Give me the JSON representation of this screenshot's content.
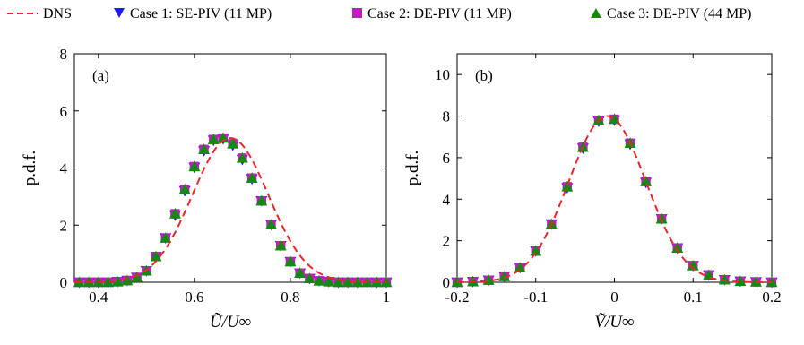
{
  "legend": {
    "dns": "DNS",
    "case1": "Case 1: SE-PIV (11 MP)",
    "case2": "Case 2: DE-PIV (11 MP)",
    "case3": "Case 3: DE-PIV (44 MP)"
  },
  "colors": {
    "dns": "#e8262c",
    "case1": "#1a1aee",
    "case2": "#c21cc2",
    "case3": "#128a12"
  },
  "chart_data": [
    {
      "type": "line",
      "panel_label": "(a)",
      "xlabel": "Ũ/U∞",
      "ylabel": "p.d.f.",
      "xlim": [
        0.35,
        1.0
      ],
      "ylim": [
        0,
        8
      ],
      "xticks": [
        0.4,
        0.6,
        0.8,
        1.0
      ],
      "xtick_labels": [
        "0.4",
        "0.6",
        "0.8",
        "1"
      ],
      "yticks": [
        0,
        2,
        4,
        6,
        8
      ],
      "ytick_labels": [
        "0",
        "2",
        "4",
        "6",
        "8"
      ],
      "dns_curve": {
        "kind": "gaussian",
        "peak": 5.05,
        "mean": 0.675,
        "sigma": 0.079
      },
      "x": [
        0.36,
        0.38,
        0.4,
        0.42,
        0.44,
        0.46,
        0.48,
        0.5,
        0.52,
        0.54,
        0.56,
        0.58,
        0.6,
        0.62,
        0.64,
        0.66,
        0.68,
        0.7,
        0.72,
        0.74,
        0.76,
        0.78,
        0.8,
        0.82,
        0.84,
        0.86,
        0.88,
        0.9,
        0.92,
        0.94,
        0.96,
        0.98,
        1.0
      ],
      "series": [
        {
          "name": "Case 1: SE-PIV (11 MP)",
          "marker": "triangle-down",
          "values": [
            0.0,
            0.0,
            0.0,
            0.0,
            0.02,
            0.06,
            0.17,
            0.4,
            0.9,
            1.55,
            2.35,
            3.2,
            4.02,
            4.6,
            4.97,
            5.02,
            4.8,
            4.3,
            3.62,
            2.85,
            2.02,
            1.28,
            0.72,
            0.32,
            0.13,
            0.05,
            0.02,
            0.0,
            0.0,
            0.0,
            0.0,
            0.0,
            0.0
          ]
        },
        {
          "name": "Case 2: DE-PIV (11 MP)",
          "marker": "square",
          "values": [
            0.0,
            0.0,
            0.0,
            0.0,
            0.02,
            0.06,
            0.17,
            0.4,
            0.9,
            1.55,
            2.4,
            3.25,
            4.05,
            4.65,
            5.0,
            5.05,
            4.85,
            4.35,
            3.65,
            2.85,
            2.02,
            1.28,
            0.72,
            0.32,
            0.13,
            0.05,
            0.02,
            0.0,
            0.0,
            0.0,
            0.0,
            0.0,
            0.0
          ]
        },
        {
          "name": "Case 3: DE-PIV (44 MP)",
          "marker": "triangle-up",
          "values": [
            0.0,
            0.0,
            0.0,
            0.0,
            0.02,
            0.06,
            0.17,
            0.4,
            0.9,
            1.55,
            2.4,
            3.25,
            4.05,
            4.65,
            5.0,
            5.05,
            4.85,
            4.35,
            3.65,
            2.85,
            2.02,
            1.28,
            0.72,
            0.32,
            0.13,
            0.05,
            0.02,
            0.0,
            0.0,
            0.0,
            0.0,
            0.0,
            0.0
          ]
        }
      ]
    },
    {
      "type": "line",
      "panel_label": "(b)",
      "xlabel": "Ṽ/U∞",
      "ylabel": "p.d.f.",
      "xlim": [
        -0.2,
        0.2
      ],
      "ylim": [
        0,
        11
      ],
      "xticks": [
        -0.2,
        -0.1,
        0.0,
        0.1,
        0.2
      ],
      "xtick_labels": [
        "-0.2",
        "-0.1",
        "0",
        "0.1",
        "0.2"
      ],
      "yticks": [
        0,
        2,
        4,
        6,
        8,
        10
      ],
      "ytick_labels": [
        "0",
        "2",
        "4",
        "6",
        "8",
        "10"
      ],
      "dns_curve": {
        "kind": "gaussian",
        "peak": 8.0,
        "mean": -0.009,
        "sigma": 0.049
      },
      "x": [
        -0.2,
        -0.18,
        -0.16,
        -0.14,
        -0.12,
        -0.1,
        -0.08,
        -0.06,
        -0.04,
        -0.02,
        0.0,
        0.02,
        0.04,
        0.06,
        0.08,
        0.1,
        0.12,
        0.14,
        0.16,
        0.18,
        0.2
      ],
      "series": [
        {
          "name": "Case 1: SE-PIV (11 MP)",
          "marker": "triangle-down",
          "values": [
            0.0,
            0.03,
            0.1,
            0.28,
            0.7,
            1.5,
            2.8,
            4.55,
            6.45,
            7.75,
            7.8,
            6.65,
            4.8,
            3.05,
            1.65,
            0.8,
            0.35,
            0.12,
            0.05,
            0.02,
            0.0
          ]
        },
        {
          "name": "Case 2: DE-PIV (11 MP)",
          "marker": "square",
          "values": [
            0.0,
            0.03,
            0.1,
            0.28,
            0.7,
            1.5,
            2.8,
            4.6,
            6.5,
            7.8,
            7.85,
            6.7,
            4.85,
            3.05,
            1.65,
            0.8,
            0.35,
            0.12,
            0.05,
            0.02,
            0.0
          ]
        },
        {
          "name": "Case 3: DE-PIV (44 MP)",
          "marker": "triangle-up",
          "values": [
            0.0,
            0.03,
            0.1,
            0.28,
            0.7,
            1.5,
            2.8,
            4.6,
            6.5,
            7.8,
            7.85,
            6.7,
            4.85,
            3.05,
            1.65,
            0.8,
            0.35,
            0.12,
            0.05,
            0.02,
            0.0
          ]
        }
      ]
    }
  ]
}
